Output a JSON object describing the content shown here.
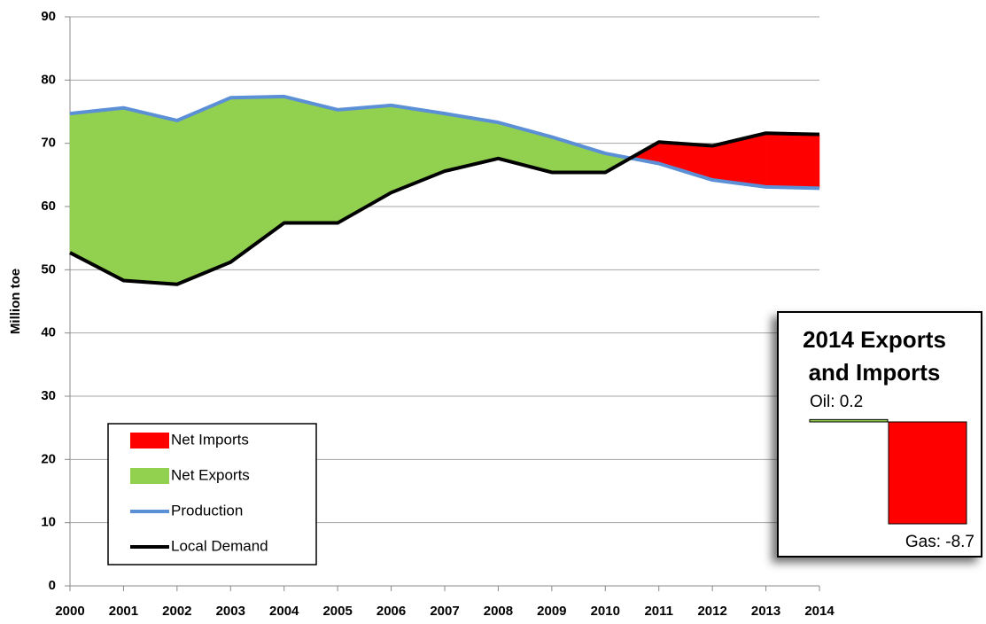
{
  "chart_data": [
    {
      "type": "area-lines",
      "y_label": "Million toe",
      "x": [
        2000,
        2001,
        2002,
        2003,
        2004,
        2005,
        2006,
        2007,
        2008,
        2009,
        2010,
        2011,
        2012,
        2013,
        2014
      ],
      "series": [
        {
          "name": "Production",
          "color": "#5b8fd6",
          "values": [
            74.7,
            75.6,
            73.6,
            77.2,
            77.4,
            75.3,
            76.0,
            74.7,
            73.3,
            71.0,
            68.4,
            66.8,
            64.2,
            63.1,
            62.9
          ]
        },
        {
          "name": "Local Demand",
          "color": "#000000",
          "values": [
            52.7,
            48.3,
            47.7,
            51.2,
            57.4,
            57.4,
            62.2,
            65.6,
            67.6,
            65.4,
            65.4,
            70.2,
            69.6,
            71.6,
            71.4
          ]
        }
      ],
      "fills": [
        {
          "name": "Net Imports",
          "color": "#ff0000"
        },
        {
          "name": "Net Exports",
          "color": "#92d050"
        }
      ],
      "xlim": [
        2000,
        2014
      ],
      "xticks": [
        2000,
        2001,
        2002,
        2003,
        2004,
        2005,
        2006,
        2007,
        2008,
        2009,
        2010,
        2011,
        2012,
        2013,
        2014
      ],
      "ylim": [
        0,
        90
      ],
      "yticks": [
        0,
        10,
        20,
        30,
        40,
        50,
        60,
        70,
        80,
        90
      ],
      "grid": true,
      "legend": "lower left"
    },
    {
      "type": "bar",
      "title_lines": [
        "2014 Exports",
        "and Imports"
      ],
      "values": [
        0.2,
        -8.7
      ],
      "value_labels": [
        "Oil: 0.2",
        "Gas: -8.7"
      ],
      "colors": [
        "#92d050",
        "#ff0000"
      ]
    }
  ]
}
